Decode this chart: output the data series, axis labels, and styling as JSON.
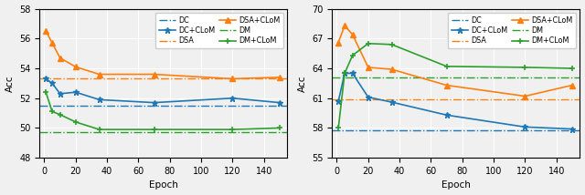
{
  "plot1": {
    "xlabel": "Epoch",
    "ylabel": "Acc",
    "xlim": [
      -3,
      155
    ],
    "ylim": [
      48,
      58
    ],
    "yticks": [
      48,
      50,
      52,
      54,
      56,
      58
    ],
    "xticks": [
      0,
      20,
      40,
      60,
      80,
      100,
      120,
      140
    ],
    "epochs": [
      1,
      5,
      10,
      20,
      35,
      70,
      120,
      150
    ],
    "DC_hline": 51.5,
    "DSA_hline": 53.3,
    "DM_hline": 49.7,
    "DC_CLoM": [
      53.3,
      53.0,
      52.3,
      52.4,
      51.9,
      51.7,
      52.0,
      51.7
    ],
    "DSA_CLoM": [
      56.5,
      55.7,
      54.7,
      54.1,
      53.6,
      53.6,
      53.3,
      53.4
    ],
    "DM_CLoM": [
      52.4,
      51.1,
      50.9,
      50.4,
      49.9,
      49.9,
      49.9,
      50.0
    ]
  },
  "plot2": {
    "xlabel": "Epoch",
    "ylabel": "Acc",
    "xlim": [
      -3,
      155
    ],
    "ylim": [
      55,
      70
    ],
    "yticks": [
      55,
      58,
      61,
      64,
      67,
      70
    ],
    "xticks": [
      0,
      20,
      40,
      60,
      80,
      100,
      120,
      140
    ],
    "epochs": [
      1,
      5,
      10,
      20,
      35,
      70,
      120,
      150
    ],
    "DC_hline": 57.8,
    "DSA_hline": 60.9,
    "DM_hline": 63.1,
    "DC_CLoM": [
      60.7,
      63.5,
      63.5,
      61.1,
      60.6,
      59.3,
      58.1,
      57.9
    ],
    "DSA_CLoM": [
      66.6,
      68.3,
      67.4,
      64.1,
      63.9,
      62.3,
      61.2,
      62.3
    ],
    "DM_CLoM": [
      58.0,
      63.5,
      65.3,
      66.5,
      66.4,
      64.2,
      64.1,
      64.0
    ]
  },
  "colors": {
    "blue": "#1f77b4",
    "orange": "#ff7f0e",
    "green": "#2ca02c"
  },
  "bg_color": "#f0f0f0",
  "figsize": [
    6.4,
    2.14
  ],
  "dpi": 100
}
